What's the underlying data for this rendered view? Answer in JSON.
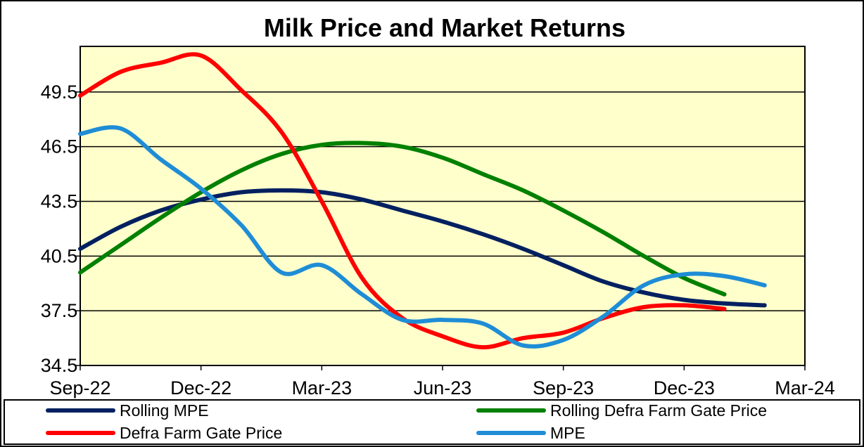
{
  "chart_data": {
    "type": "line",
    "title": "Milk Price and Market Returns",
    "xlabel": "",
    "ylabel": "",
    "x_ticks": [
      "Sep-22",
      "Dec-22",
      "Mar-23",
      "Jun-23",
      "Sep-23",
      "Dec-23",
      "Mar-24"
    ],
    "y_ticks": [
      "34.5",
      "37.5",
      "40.5",
      "43.5",
      "46.5",
      "49.5"
    ],
    "ylim": [
      34.5,
      52.0
    ],
    "xlim": [
      "Sep-22",
      "Mar-24"
    ],
    "grid": "horizontal",
    "background": "#FFFFCC",
    "legend_position": "bottom",
    "series": [
      {
        "name": "Rolling MPE",
        "color": "#002060",
        "x": [
          "Sep-22",
          "Oct-22",
          "Nov-22",
          "Dec-22",
          "Jan-23",
          "Feb-23",
          "Mar-23",
          "Apr-23",
          "May-23",
          "Jun-23",
          "Jul-23",
          "Aug-23",
          "Sep-23",
          "Oct-23",
          "Nov-23",
          "Dec-23",
          "Jan-24",
          "Feb-24"
        ],
        "values": [
          40.9,
          42.1,
          43.0,
          43.6,
          44.0,
          44.1,
          44.0,
          43.6,
          43.0,
          42.4,
          41.7,
          40.9,
          40.0,
          39.1,
          38.5,
          38.1,
          37.9,
          37.8
        ]
      },
      {
        "name": "Rolling Defra Farm Gate Price",
        "color": "#008000",
        "x": [
          "Sep-22",
          "Oct-22",
          "Nov-22",
          "Dec-22",
          "Jan-23",
          "Feb-23",
          "Mar-23",
          "Apr-23",
          "May-23",
          "Jun-23",
          "Jul-23",
          "Aug-23",
          "Sep-23",
          "Oct-23",
          "Nov-23",
          "Dec-23",
          "Jan-24"
        ],
        "values": [
          39.6,
          41.1,
          42.6,
          44.0,
          45.2,
          46.1,
          46.6,
          46.7,
          46.5,
          45.9,
          45.0,
          44.1,
          43.0,
          41.8,
          40.5,
          39.3,
          38.4
        ]
      },
      {
        "name": "Defra Farm Gate Price",
        "color": "#FF0000",
        "x": [
          "Sep-22",
          "Oct-22",
          "Nov-22",
          "Dec-22",
          "Jan-23",
          "Feb-23",
          "Mar-23",
          "Apr-23",
          "May-23",
          "Jun-23",
          "Jul-23",
          "Aug-23",
          "Sep-23",
          "Oct-23",
          "Nov-23",
          "Dec-23",
          "Jan-24"
        ],
        "values": [
          49.3,
          50.6,
          51.1,
          51.5,
          49.6,
          47.3,
          43.5,
          39.3,
          37.1,
          36.1,
          35.5,
          36.0,
          36.3,
          37.1,
          37.7,
          37.8,
          37.6
        ]
      },
      {
        "name": "MPE",
        "color": "#1F8DD6",
        "x": [
          "Sep-22",
          "Oct-22",
          "Nov-22",
          "Dec-22",
          "Jan-23",
          "Feb-23",
          "Mar-23",
          "Apr-23",
          "May-23",
          "Jun-23",
          "Jul-23",
          "Aug-23",
          "Sep-23",
          "Oct-23",
          "Nov-23",
          "Dec-23",
          "Jan-24",
          "Feb-24"
        ],
        "values": [
          47.2,
          47.5,
          45.8,
          44.2,
          42.2,
          39.6,
          40.0,
          38.4,
          37.0,
          37.0,
          36.8,
          35.6,
          35.9,
          37.2,
          38.9,
          39.5,
          39.4,
          38.9
        ]
      }
    ]
  }
}
